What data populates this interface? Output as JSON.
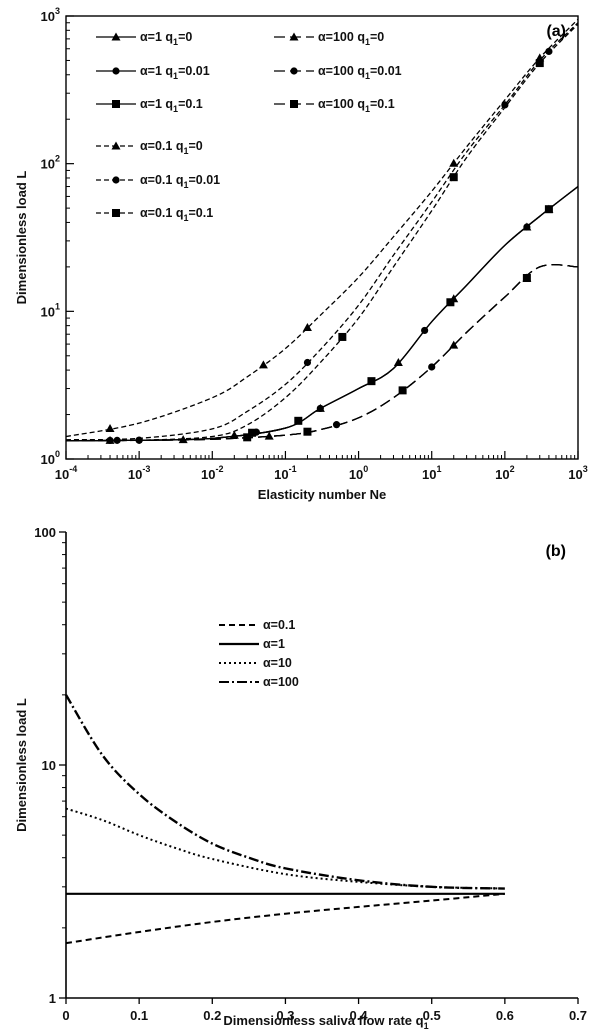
{
  "chart_data": [
    {
      "type": "line",
      "panel_label": "(a)",
      "xlabel": "Elasticity number Ne",
      "ylabel": "Dimensionless load L",
      "xscale": "log",
      "yscale": "log",
      "xlim": [
        0.0001,
        1000
      ],
      "ylim": [
        1,
        1000
      ],
      "x_ticks": [
        {
          "base": "10",
          "exp": "-4"
        },
        {
          "base": "10",
          "exp": "-3"
        },
        {
          "base": "10",
          "exp": "-2"
        },
        {
          "base": "10",
          "exp": "-1"
        },
        {
          "base": "10",
          "exp": "0"
        },
        {
          "base": "10",
          "exp": "1"
        },
        {
          "base": "10",
          "exp": "2"
        },
        {
          "base": "10",
          "exp": "3"
        }
      ],
      "y_ticks": [
        {
          "base": "10",
          "exp": "0"
        },
        {
          "base": "10",
          "exp": "1"
        },
        {
          "base": "10",
          "exp": "2"
        },
        {
          "base": "10",
          "exp": "3"
        }
      ],
      "legend_position": "top-left",
      "series": [
        {
          "name": "α=1 q1=0",
          "label_main": "α=1 q",
          "label_sub": "1",
          "label_tail": "=0",
          "style": "solid",
          "marker": "triangle",
          "x": [
            0.0001,
            0.001,
            0.01,
            0.1,
            0.3,
            1,
            3,
            10,
            30,
            100,
            300,
            1000
          ],
          "y": [
            1.33,
            1.34,
            1.38,
            1.62,
            2.2,
            3.0,
            4.1,
            8.5,
            15,
            28,
            44,
            70
          ],
          "marker_x": [
            0.02,
            0.3,
            3.5,
            20,
            200,
            400
          ]
        },
        {
          "name": "α=1 q1=0.01",
          "label_main": "α=1 q",
          "label_sub": "1",
          "label_tail": "=0.01",
          "style": "solid",
          "marker": "circle",
          "x": [
            0.0001,
            0.001,
            0.01,
            0.1,
            0.3,
            1,
            3,
            10,
            30,
            100,
            300,
            1000
          ],
          "y": [
            1.33,
            1.34,
            1.38,
            1.62,
            2.2,
            3.0,
            4.1,
            8.5,
            15,
            28,
            44,
            70
          ],
          "marker_x": [
            0.0005,
            0.001,
            0.04,
            0.3,
            8,
            200
          ]
        },
        {
          "name": "α=1 q1=0.1",
          "label_main": "α=1 q",
          "label_sub": "1",
          "label_tail": "=0.1",
          "style": "solid",
          "marker": "square",
          "x": [
            0.0001,
            0.001,
            0.01,
            0.1,
            0.3,
            1,
            3,
            10,
            30,
            100,
            300,
            1000
          ],
          "y": [
            1.33,
            1.34,
            1.38,
            1.62,
            2.2,
            3.0,
            4.1,
            8.5,
            15,
            28,
            44,
            70
          ],
          "marker_x": [
            0.035,
            0.15,
            1.5,
            18,
            400
          ]
        },
        {
          "name": "α=100 q1=0",
          "label_main": "α=100 q",
          "label_sub": "1",
          "label_tail": "=0",
          "style": "longdash",
          "marker": "triangle",
          "x": [
            0.0001,
            0.001,
            0.01,
            0.1,
            0.3,
            1,
            3,
            10,
            30,
            100,
            300,
            1000
          ],
          "y": [
            1.33,
            1.34,
            1.36,
            1.45,
            1.58,
            1.9,
            2.6,
            4.2,
            7.2,
            12.5,
            20,
            20
          ],
          "marker_x": [
            0.0004,
            0.004,
            0.06,
            20,
            200
          ]
        },
        {
          "name": "α=100 q1=0.01",
          "label_main": "α=100 q",
          "label_sub": "1",
          "label_tail": "=0.01",
          "style": "longdash",
          "marker": "circle",
          "x": [
            0.0001,
            0.001,
            0.01,
            0.1,
            0.3,
            1,
            3,
            10,
            30,
            100,
            300,
            1000
          ],
          "y": [
            1.33,
            1.34,
            1.36,
            1.45,
            1.58,
            1.9,
            2.6,
            4.2,
            7.2,
            12.5,
            20,
            20
          ],
          "marker_x": [
            0.0004,
            0.001,
            0.5,
            10,
            200
          ]
        },
        {
          "name": "α=100 q1=0.1",
          "label_main": "α=100 q",
          "label_sub": "1",
          "label_tail": "=0.1",
          "style": "longdash",
          "marker": "square",
          "x": [
            0.0001,
            0.001,
            0.01,
            0.1,
            0.3,
            1,
            3,
            10,
            30,
            100,
            300,
            1000
          ],
          "y": [
            1.33,
            1.34,
            1.36,
            1.45,
            1.58,
            1.9,
            2.6,
            4.2,
            7.2,
            12.5,
            20,
            20
          ],
          "marker_x": [
            0.03,
            0.2,
            4,
            200
          ]
        },
        {
          "name": "α=0.1 q1=0",
          "label_main": "α=0.1 q",
          "label_sub": "1",
          "label_tail": "=0",
          "style": "shortdash",
          "marker": "triangle",
          "x": [
            0.0001,
            0.001,
            0.01,
            0.03,
            0.1,
            0.3,
            1,
            3,
            10,
            30,
            100,
            300,
            1000
          ],
          "y": [
            1.42,
            1.75,
            2.6,
            3.6,
            5.6,
            9.4,
            17,
            32,
            65,
            130,
            270,
            520,
            950
          ],
          "marker_x": [
            0.0004,
            0.05,
            0.2,
            20,
            300
          ]
        },
        {
          "name": "α=0.1 q1=0.01",
          "label_main": "α=0.1 q",
          "label_sub": "1",
          "label_tail": "=0.01",
          "style": "shortdash",
          "marker": "circle",
          "x": [
            0.0001,
            0.001,
            0.01,
            0.03,
            0.1,
            0.3,
            1,
            3,
            10,
            30,
            100,
            300,
            1000
          ],
          "y": [
            1.35,
            1.38,
            1.6,
            2.1,
            3.2,
            5.5,
            11,
            24,
            55,
            120,
            250,
            500,
            900
          ],
          "marker_x": [
            0.2,
            100,
            400
          ]
        },
        {
          "name": "α=0.1 q1=0.1",
          "label_main": "α=0.1 q",
          "label_sub": "1",
          "label_tail": "=0.1",
          "style": "shortdash",
          "marker": "square",
          "x": [
            0.0001,
            0.001,
            0.01,
            0.03,
            0.1,
            0.3,
            1,
            3,
            10,
            30,
            100,
            300,
            1000
          ],
          "y": [
            1.33,
            1.34,
            1.42,
            1.7,
            2.6,
            4.5,
            9,
            20,
            48,
            110,
            240,
            480,
            880
          ],
          "marker_x": [
            0.6,
            20,
            300
          ]
        }
      ]
    },
    {
      "type": "line",
      "panel_label": "(b)",
      "xlabel_main": "Dimensionless saliva flow rate q",
      "xlabel_sub": "1",
      "ylabel": "Dimensionless load L",
      "xscale": "linear",
      "yscale": "log",
      "xlim": [
        0,
        0.7
      ],
      "ylim": [
        1,
        100
      ],
      "x_tick_labels": [
        "0",
        "0.1",
        "0.2",
        "0.3",
        "0.4",
        "0.5",
        "0.6",
        "0.7"
      ],
      "y_tick_labels": [
        "1",
        "10",
        "100"
      ],
      "legend_position": "center-left",
      "series": [
        {
          "name": "α=0.1",
          "style": "dash",
          "x": [
            0,
            0.1,
            0.2,
            0.3,
            0.4,
            0.5,
            0.6
          ],
          "y": [
            1.72,
            1.92,
            2.12,
            2.3,
            2.46,
            2.62,
            2.8
          ]
        },
        {
          "name": "α=1",
          "style": "solid",
          "x": [
            0,
            0.6
          ],
          "y": [
            2.8,
            2.8
          ]
        },
        {
          "name": "α=10",
          "style": "dot",
          "x": [
            0,
            0.05,
            0.1,
            0.15,
            0.2,
            0.3,
            0.4,
            0.5,
            0.6
          ],
          "y": [
            6.5,
            5.8,
            5.0,
            4.4,
            3.95,
            3.4,
            3.15,
            3.0,
            2.95
          ]
        },
        {
          "name": "α=100",
          "style": "dashdot",
          "x": [
            0,
            0.05,
            0.1,
            0.15,
            0.2,
            0.25,
            0.3,
            0.4,
            0.5,
            0.6
          ],
          "y": [
            20,
            11,
            7.5,
            5.7,
            4.6,
            4.0,
            3.6,
            3.2,
            3.0,
            2.95
          ]
        }
      ]
    }
  ]
}
